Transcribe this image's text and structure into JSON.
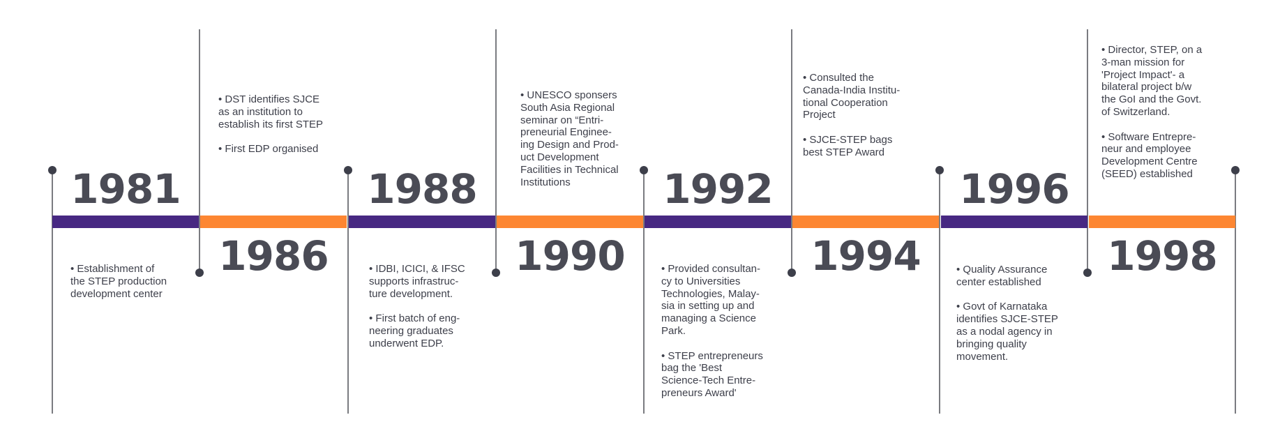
{
  "colors": {
    "purple": "#472882",
    "orange": "#fd8632",
    "text": "#3d3f4a",
    "year": "#4a4b55",
    "line": "#7a7b80"
  },
  "milestones": [
    {
      "year": "1981",
      "position": "upper-year",
      "notes": [
        "• Establishment of\nthe STEP production\ndevelopment center"
      ]
    },
    {
      "year": "1986",
      "position": "lower-year",
      "notes": [
        "• DST identifies SJCE\nas an institution to\nestablish its first STEP",
        "• First EDP organised"
      ]
    },
    {
      "year": "1988",
      "position": "upper-year",
      "notes": [
        "• IDBI, ICICI, & IFSC\nsupports infrastruc-\nture development.",
        "• First batch of eng-\nneering graduates\nunderwent EDP."
      ]
    },
    {
      "year": "1990",
      "position": "lower-year",
      "notes": [
        "• UNESCO sponsers\nSouth Asia Regional\nseminar on “Entri-\npreneurial Enginee-\ning Design and Prod-\nuct Development\nFacilities in Technical\nInstitutions"
      ]
    },
    {
      "year": "1992",
      "position": "upper-year",
      "notes": [
        "• Provided consultan-\ncy to Universities\nTechnologies, Malay-\nsia in setting up and\nmanaging a Science\nPark.",
        "• STEP entrepreneurs\nbag the 'Best\nScience-Tech Entre-\npreneurs Award'"
      ]
    },
    {
      "year": "1994",
      "position": "lower-year",
      "notes": [
        "• Consulted the\nCanada-India Institu-\ntional Cooperation\nProject",
        "• SJCE-STEP bags\nbest STEP Award"
      ]
    },
    {
      "year": "1996",
      "position": "upper-year",
      "notes": [
        "• Quality Assurance\ncenter established",
        "• Govt of Karnataka\nidentifies SJCE-STEP\nas a nodal agency in\nbringing quality\nmovement."
      ]
    },
    {
      "year": "1998",
      "position": "lower-year",
      "notes": [
        "• Director, STEP, on a\n3-man mission for\n'Project Impact'- a\nbilateral project b/w\nthe GoI and the Govt.\nof Switzerland.",
        "• Software Entrepre-\nneur and employee\nDevelopment Centre\n(SEED) established"
      ]
    }
  ]
}
